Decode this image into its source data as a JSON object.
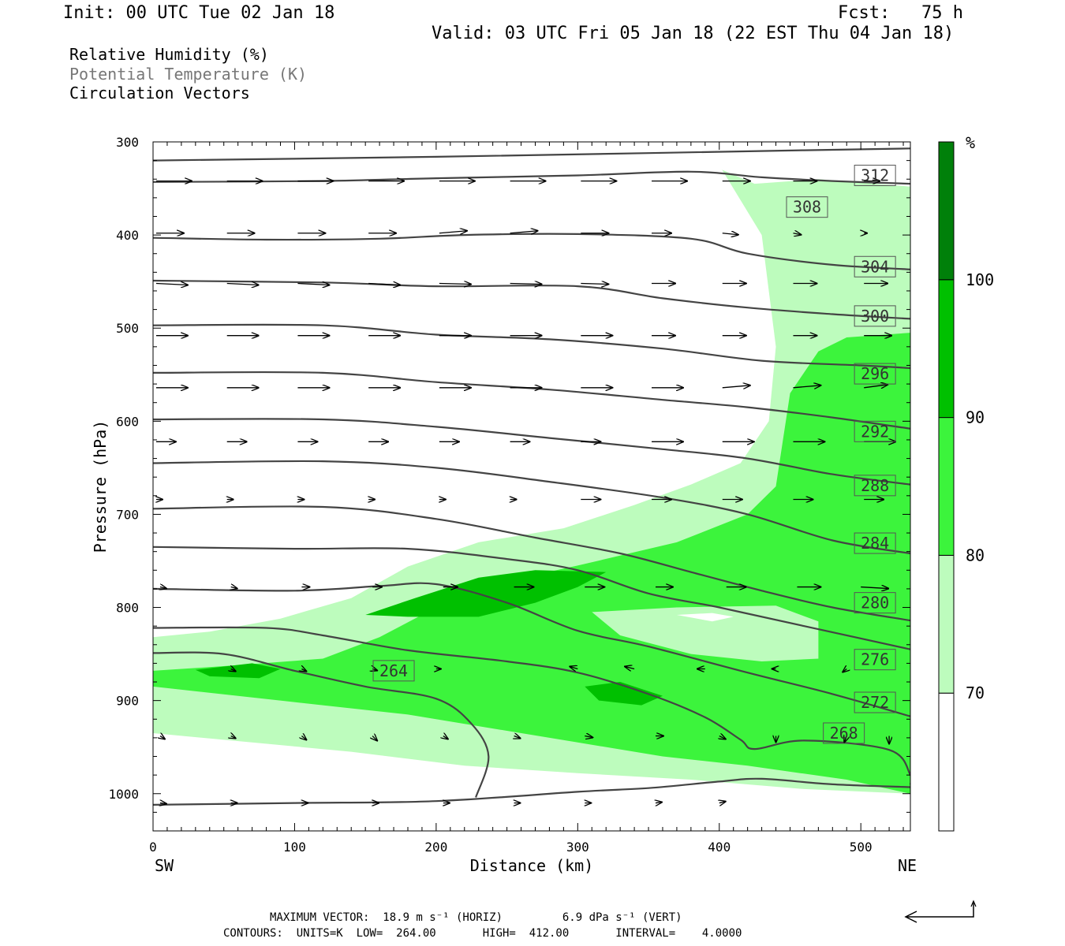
{
  "header": {
    "init": "Init: 00 UTC Tue 02 Jan 18",
    "fcst": "Fcst:   75 h",
    "valid": "Valid: 03 UTC Fri 05 Jan 18 (22 EST Thu 04 Jan 18)"
  },
  "legend": {
    "rh": "Relative Humidity (%)",
    "pt": "Potential Temperature (K)",
    "cv": "Circulation Vectors"
  },
  "footer": {
    "line1": "MAXIMUM VECTOR:  18.9 m s⁻¹ (HORIZ)         6.9 dPa s⁻¹ (VERT)",
    "line2": "CONTOURS:  UNITS=K  LOW=  264.00       HIGH=  412.00       INTERVAL=    4.0000"
  },
  "colors": {
    "rh70": "#bdfcbd",
    "rh80": "#3cf43c",
    "rh90": "#00c000",
    "rh100": "#00800a",
    "theta": "#444444"
  },
  "chart_data": {
    "type": "cross-section",
    "xlabel": "Distance (km)",
    "ylabel": "Pressure (hPa)",
    "xlim": [
      0,
      535
    ],
    "ylim": [
      1040,
      300
    ],
    "x_ticks": [
      0,
      100,
      200,
      300,
      400,
      500
    ],
    "y_ticks": [
      300,
      400,
      500,
      600,
      700,
      800,
      900,
      1000
    ],
    "x_end_labels": {
      "left": "SW",
      "right": "NE"
    },
    "colorbar": {
      "unit": "%",
      "levels": [
        70,
        80,
        90,
        100
      ],
      "colors": [
        "#ffffff",
        "#bdfcbd",
        "#3cf43c",
        "#00c000",
        "#00800a"
      ]
    },
    "rh_regions": [
      {
        "level": 70,
        "points": [
          [
            0,
            832
          ],
          [
            40,
            826
          ],
          [
            90,
            812
          ],
          [
            140,
            790
          ],
          [
            180,
            756
          ],
          [
            230,
            730
          ],
          [
            290,
            715
          ],
          [
            340,
            690
          ],
          [
            380,
            668
          ],
          [
            415,
            645
          ],
          [
            435,
            600
          ],
          [
            440,
            520
          ],
          [
            430,
            400
          ],
          [
            402,
            330
          ],
          [
            425,
            345
          ],
          [
            470,
            340
          ],
          [
            535,
            348
          ],
          [
            535,
            1000
          ],
          [
            460,
            995
          ],
          [
            380,
            985
          ],
          [
            300,
            978
          ],
          [
            220,
            970
          ],
          [
            140,
            955
          ],
          [
            70,
            945
          ],
          [
            0,
            935
          ]
        ]
      },
      {
        "level": 80,
        "points": [
          [
            0,
            868
          ],
          [
            60,
            862
          ],
          [
            120,
            855
          ],
          [
            160,
            832
          ],
          [
            200,
            800
          ],
          [
            240,
            775
          ],
          [
            300,
            755
          ],
          [
            370,
            730
          ],
          [
            420,
            700
          ],
          [
            440,
            670
          ],
          [
            445,
            620
          ],
          [
            450,
            570
          ],
          [
            470,
            525
          ],
          [
            490,
            510
          ],
          [
            535,
            505
          ],
          [
            535,
            1000
          ],
          [
            490,
            985
          ],
          [
            420,
            970
          ],
          [
            360,
            960
          ],
          [
            300,
            945
          ],
          [
            240,
            930
          ],
          [
            180,
            915
          ],
          [
            120,
            905
          ],
          [
            60,
            895
          ],
          [
            0,
            885
          ]
        ]
      },
      {
        "level": 90,
        "points": [
          [
            150,
            808
          ],
          [
            185,
            790
          ],
          [
            230,
            768
          ],
          [
            270,
            760
          ],
          [
            320,
            762
          ],
          [
            300,
            778
          ],
          [
            270,
            795
          ],
          [
            230,
            810
          ],
          [
            180,
            810
          ]
        ]
      },
      {
        "level": 90,
        "points": [
          [
            30,
            867
          ],
          [
            70,
            860
          ],
          [
            90,
            866
          ],
          [
            75,
            876
          ],
          [
            40,
            874
          ]
        ]
      },
      {
        "level": 90,
        "points": [
          [
            305,
            885
          ],
          [
            330,
            880
          ],
          [
            360,
            895
          ],
          [
            345,
            905
          ],
          [
            315,
            900
          ]
        ]
      }
    ],
    "rh_holes": [
      {
        "level": 70,
        "points": [
          [
            310,
            805
          ],
          [
            370,
            800
          ],
          [
            440,
            798
          ],
          [
            470,
            815
          ],
          [
            470,
            855
          ],
          [
            430,
            858
          ],
          [
            380,
            850
          ],
          [
            330,
            830
          ]
        ]
      },
      {
        "level": 70,
        "points": [
          [
            370,
            808
          ],
          [
            395,
            806
          ],
          [
            410,
            810
          ],
          [
            395,
            815
          ]
        ]
      }
    ],
    "theta_contours": [
      {
        "label": "312",
        "points": [
          [
            0,
            320
          ],
          [
            200,
            316
          ],
          [
            350,
            312
          ],
          [
            460,
            309
          ],
          [
            535,
            307
          ]
        ],
        "label_at": [
          510,
          336
        ]
      },
      {
        "label": "308",
        "points": [
          [
            0,
            343
          ],
          [
            120,
            342
          ],
          [
            200,
            339
          ],
          [
            300,
            336
          ],
          [
            380,
            332
          ],
          [
            430,
            338
          ],
          [
            480,
            342
          ],
          [
            535,
            345
          ]
        ],
        "label_at": [
          462,
          370
        ]
      },
      {
        "label": "304",
        "points": [
          [
            0,
            403
          ],
          [
            80,
            405
          ],
          [
            160,
            404
          ],
          [
            220,
            400
          ],
          [
            300,
            399
          ],
          [
            380,
            404
          ],
          [
            420,
            420
          ],
          [
            480,
            432
          ],
          [
            535,
            437
          ]
        ],
        "label_at": [
          510,
          434
        ]
      },
      {
        "label": "300",
        "points": [
          [
            0,
            449
          ],
          [
            120,
            451
          ],
          [
            200,
            455
          ],
          [
            300,
            455
          ],
          [
            360,
            468
          ],
          [
            420,
            478
          ],
          [
            480,
            485
          ],
          [
            535,
            490
          ]
        ],
        "label_at": [
          510,
          487
        ]
      },
      {
        "label": "296",
        "points": [
          [
            0,
            497
          ],
          [
            120,
            497
          ],
          [
            200,
            507
          ],
          [
            280,
            512
          ],
          [
            360,
            522
          ],
          [
            430,
            535
          ],
          [
            500,
            540
          ],
          [
            535,
            543
          ]
        ],
        "label_at": [
          510,
          549
        ]
      },
      {
        "label": "292",
        "points": [
          [
            0,
            548
          ],
          [
            120,
            548
          ],
          [
            200,
            558
          ],
          [
            280,
            566
          ],
          [
            360,
            577
          ],
          [
            420,
            585
          ],
          [
            480,
            596
          ],
          [
            535,
            608
          ]
        ],
        "label_at": [
          510,
          611
        ]
      },
      {
        "label": "288",
        "points": [
          [
            0,
            598
          ],
          [
            120,
            598
          ],
          [
            200,
            606
          ],
          [
            280,
            618
          ],
          [
            360,
            630
          ],
          [
            420,
            640
          ],
          [
            480,
            657
          ],
          [
            535,
            668
          ]
        ],
        "label_at": [
          510,
          669
        ]
      },
      {
        "label": "284",
        "points": [
          [
            0,
            645
          ],
          [
            120,
            643
          ],
          [
            200,
            650
          ],
          [
            280,
            665
          ],
          [
            360,
            682
          ],
          [
            420,
            700
          ],
          [
            480,
            728
          ],
          [
            535,
            742
          ]
        ],
        "label_at": [
          510,
          731
        ]
      },
      {
        "label": "280",
        "points": [
          [
            0,
            694
          ],
          [
            120,
            692
          ],
          [
            200,
            705
          ],
          [
            270,
            725
          ],
          [
            330,
            742
          ],
          [
            380,
            762
          ],
          [
            430,
            782
          ],
          [
            480,
            800
          ],
          [
            535,
            814
          ]
        ],
        "label_at": [
          510,
          795
        ]
      },
      {
        "label": "276",
        "points": [
          [
            0,
            735
          ],
          [
            100,
            737
          ],
          [
            180,
            737
          ],
          [
            250,
            748
          ],
          [
            300,
            760
          ],
          [
            350,
            785
          ],
          [
            400,
            800
          ],
          [
            460,
            820
          ],
          [
            535,
            845
          ]
        ],
        "label_at": [
          510,
          856
        ]
      },
      {
        "label": "272",
        "points": [
          [
            0,
            780
          ],
          [
            100,
            782
          ],
          [
            160,
            777
          ],
          [
            200,
            775
          ],
          [
            250,
            795
          ],
          [
            300,
            825
          ],
          [
            350,
            842
          ],
          [
            420,
            870
          ],
          [
            480,
            893
          ],
          [
            535,
            917
          ]
        ],
        "label_at": [
          510,
          902
        ]
      },
      {
        "label": "268",
        "points": [
          [
            0,
            822
          ],
          [
            80,
            822
          ],
          [
            120,
            830
          ],
          [
            180,
            846
          ],
          [
            250,
            858
          ],
          [
            300,
            870
          ],
          [
            350,
            893
          ],
          [
            390,
            918
          ],
          [
            415,
            942
          ],
          [
            425,
            952
          ],
          [
            460,
            943
          ],
          [
            520,
            953
          ],
          [
            535,
            980
          ],
          [
            535,
            990
          ]
        ],
        "label_at": [
          488,
          935
        ]
      },
      {
        "label": "264",
        "points": [
          [
            0,
            849
          ],
          [
            50,
            850
          ],
          [
            100,
            868
          ],
          [
            150,
            885
          ],
          [
            200,
            898
          ],
          [
            225,
            925
          ],
          [
            237,
            960
          ],
          [
            228,
            1004
          ]
        ],
        "label_at": [
          170,
          868
        ]
      }
    ],
    "bottom_contour": [
      [
        0,
        1012
      ],
      [
        100,
        1010
      ],
      [
        200,
        1008
      ],
      [
        300,
        998
      ],
      [
        350,
        994
      ],
      [
        400,
        987
      ],
      [
        430,
        984
      ],
      [
        480,
        990
      ],
      [
        535,
        993
      ]
    ],
    "vectors": [
      {
        "p": 342,
        "x": [
          0,
          50,
          100,
          150,
          200,
          250,
          300,
          350,
          400,
          450,
          500
        ],
        "dx": [
          45,
          45,
          45,
          45,
          45,
          45,
          45,
          45,
          35,
          30,
          20
        ],
        "dy": [
          0,
          0,
          0,
          0,
          0,
          0,
          0,
          0,
          0,
          0,
          0
        ]
      },
      {
        "p": 398,
        "x": [
          0,
          50,
          100,
          150,
          200,
          250,
          300,
          350,
          400,
          450,
          500
        ],
        "dx": [
          35,
          35,
          35,
          35,
          35,
          35,
          35,
          25,
          20,
          10,
          4
        ],
        "dy": [
          0,
          0,
          0,
          0,
          -3,
          -3,
          0,
          0,
          2,
          2,
          0
        ]
      },
      {
        "p": 452,
        "x": [
          0,
          50,
          100,
          150,
          200,
          250,
          300,
          350,
          400,
          450,
          500
        ],
        "dx": [
          40,
          40,
          40,
          40,
          40,
          40,
          35,
          30,
          30,
          30,
          30
        ],
        "dy": [
          2,
          2,
          2,
          2,
          1,
          1,
          1,
          0,
          0,
          0,
          0
        ]
      },
      {
        "p": 508,
        "x": [
          0,
          50,
          100,
          150,
          200,
          250,
          300,
          350,
          400,
          450,
          500
        ],
        "dx": [
          40,
          40,
          40,
          40,
          40,
          40,
          40,
          30,
          30,
          30,
          35
        ],
        "dy": [
          0,
          0,
          0,
          0,
          0,
          0,
          0,
          0,
          0,
          0,
          0
        ]
      },
      {
        "p": 564,
        "x": [
          0,
          50,
          100,
          150,
          200,
          250,
          300,
          350,
          400,
          450,
          500
        ],
        "dx": [
          40,
          40,
          40,
          40,
          40,
          40,
          40,
          40,
          35,
          35,
          30
        ],
        "dy": [
          0,
          0,
          0,
          0,
          0,
          0,
          0,
          0,
          -3,
          -3,
          -4
        ]
      },
      {
        "p": 622,
        "x": [
          0,
          50,
          100,
          150,
          200,
          250,
          300,
          350,
          400,
          450,
          500
        ],
        "dx": [
          25,
          25,
          25,
          25,
          25,
          25,
          25,
          40,
          40,
          40,
          40
        ],
        "dy": [
          0,
          0,
          0,
          0,
          0,
          0,
          0,
          0,
          0,
          0,
          0
        ]
      },
      {
        "p": 684,
        "x": [
          0,
          50,
          100,
          150,
          200,
          250,
          300,
          350,
          400,
          450,
          500
        ],
        "dx": [
          8,
          8,
          8,
          8,
          8,
          8,
          25,
          25,
          25,
          25,
          25
        ],
        "dy": [
          0,
          0,
          0,
          0,
          0,
          0,
          0,
          0,
          0,
          0,
          0
        ]
      },
      {
        "p": 740,
        "x": [
          0,
          50,
          100,
          150,
          200,
          250,
          300,
          350,
          400,
          450,
          500
        ],
        "dx": [
          0,
          0,
          0,
          0,
          0,
          0,
          0,
          0,
          0,
          0,
          0
        ],
        "dy": [
          0,
          0,
          0,
          0,
          0,
          0,
          0,
          0,
          0,
          0,
          0
        ]
      }
    ]
  }
}
